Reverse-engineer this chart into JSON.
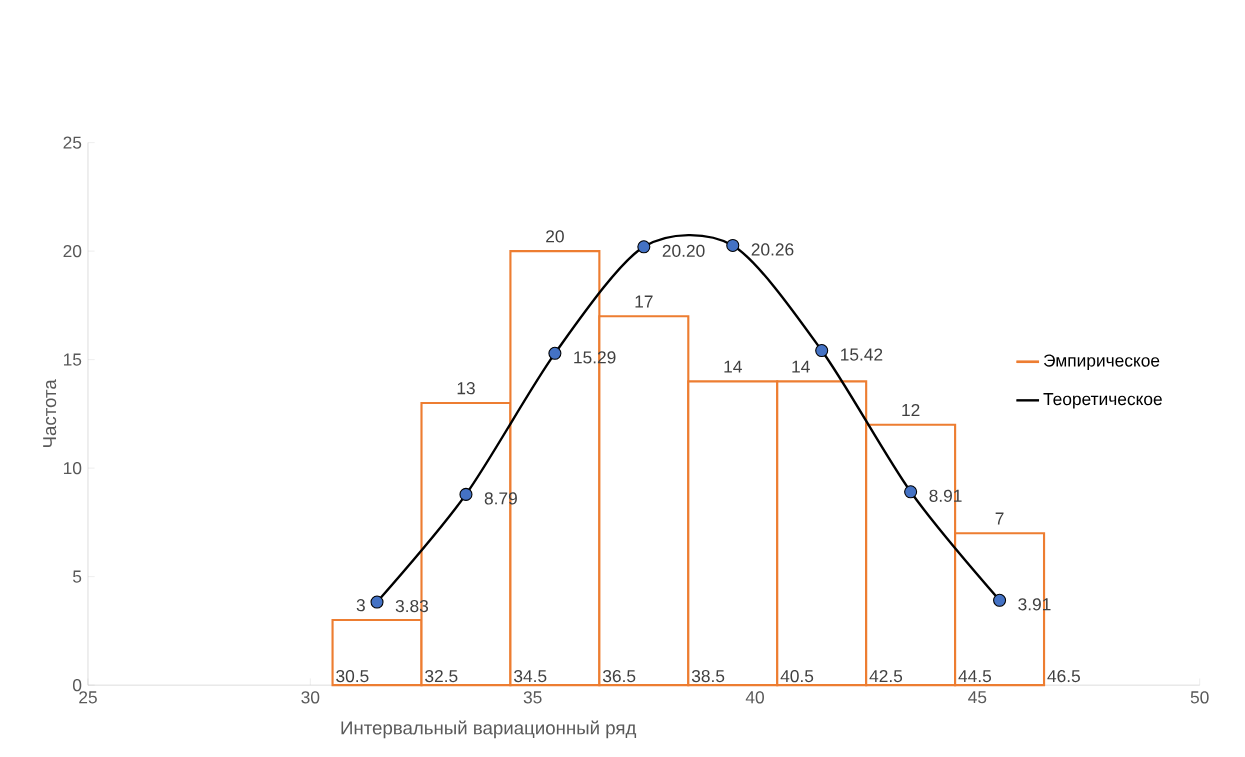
{
  "chart_data": {
    "type": "histogram",
    "xlabel": "Интервальный вариационный ряд",
    "ylabel": "Частота",
    "bins": [
      30.5,
      32.5,
      34.5,
      36.5,
      38.5,
      40.5,
      42.5,
      44.5,
      46.5
    ],
    "series": [
      {
        "name": "Эмпирическое",
        "color": "#ed7d31",
        "values": [
          3,
          13,
          20,
          17,
          14,
          14,
          12,
          7
        ],
        "value_labels": [
          "3",
          "13",
          "20",
          "17",
          "14",
          "14",
          "12",
          "7"
        ]
      },
      {
        "name": "Теоретическое",
        "type": "line",
        "color": "#000000",
        "colors": [
          "#4472c4",
          "#4472c4",
          "#4472c4",
          "#4472c4",
          "#4472c4",
          "#4472c4",
          "#4472c4",
          "#4472c4"
        ],
        "x": [
          31.5,
          33.5,
          35.5,
          37.5,
          39.5,
          41.5,
          43.5,
          45.5
        ],
        "values": [
          3.83,
          8.79,
          15.29,
          20.2,
          20.26,
          15.42,
          8.91,
          3.91
        ],
        "value_labels": [
          "3.83",
          "8.79",
          "15.29",
          "20.20",
          "20.26",
          "15.42",
          "8.91",
          "3.91"
        ],
        "marker": "circle"
      }
    ],
    "annotations": [
      {
        "text": "30.5",
        "x": 30.5,
        "y": 0
      },
      {
        "text": "32.5",
        "x": 32.5,
        "y": 0
      },
      {
        "text": "34.5",
        "x": 34.5,
        "y": 0
      },
      {
        "text": "36.5",
        "x": 36.5,
        "y": 0
      },
      {
        "text": "38.5",
        "x": 38.5,
        "y": 0
      },
      {
        "text": "40.5",
        "x": 40.5,
        "y": 0
      },
      {
        "text": "42.5",
        "x": 42.5,
        "y": 0
      },
      {
        "text": "44.5",
        "x": 44.5,
        "y": 0
      },
      {
        "text": "46.5",
        "x": 46.5,
        "y": 0
      }
    ],
    "xlim": [
      25,
      50
    ],
    "xticks": [
      25,
      30,
      35,
      40,
      45,
      50
    ],
    "ylim": [
      0,
      25
    ],
    "yticks": [
      0,
      5,
      10,
      15,
      20,
      25
    ],
    "grid": false,
    "legend": "right"
  }
}
